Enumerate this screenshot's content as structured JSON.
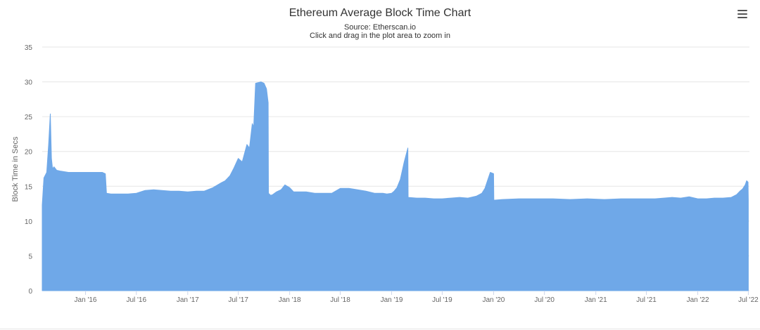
{
  "menu": {
    "icon": "hamburger-menu-icon"
  },
  "chart_data": {
    "type": "area",
    "title": "Ethereum Average Block Time Chart",
    "subtitle": "Source: Etherscan.io",
    "subtitle2": "Click and drag in the plot area to zoom in",
    "xlabel": "",
    "ylabel": "Block Time in Secs",
    "ylim": [
      0,
      35
    ],
    "yticks": [
      0,
      5,
      10,
      15,
      20,
      25,
      30,
      35
    ],
    "xlim": [
      "2015-07-30",
      "2022-07-05"
    ],
    "xticks": [
      {
        "date": "2016-01-01",
        "label": "Jan '16"
      },
      {
        "date": "2016-07-01",
        "label": "Jul '16"
      },
      {
        "date": "2017-01-01",
        "label": "Jan '17"
      },
      {
        "date": "2017-07-01",
        "label": "Jul '17"
      },
      {
        "date": "2018-01-01",
        "label": "Jan '18"
      },
      {
        "date": "2018-07-01",
        "label": "Jul '18"
      },
      {
        "date": "2019-01-01",
        "label": "Jan '19"
      },
      {
        "date": "2019-07-01",
        "label": "Jul '19"
      },
      {
        "date": "2020-01-01",
        "label": "Jan '20"
      },
      {
        "date": "2020-07-01",
        "label": "Jul '20"
      },
      {
        "date": "2021-01-01",
        "label": "Jan '21"
      },
      {
        "date": "2021-07-01",
        "label": "Jul '21"
      },
      {
        "date": "2022-01-01",
        "label": "Jan '22"
      },
      {
        "date": "2022-07-01",
        "label": "Jul '22"
      }
    ],
    "grid": true,
    "series": [
      {
        "color": "#6fa8e8",
        "x": [
          "2015-07-30",
          "2015-08-05",
          "2015-08-15",
          "2015-08-22",
          "2015-08-28",
          "2015-09-01",
          "2015-09-05",
          "2015-09-10",
          "2015-09-20",
          "2015-10-01",
          "2015-11-01",
          "2015-12-01",
          "2016-01-01",
          "2016-02-01",
          "2016-03-01",
          "2016-03-12",
          "2016-03-16",
          "2016-04-01",
          "2016-05-01",
          "2016-06-01",
          "2016-07-01",
          "2016-08-01",
          "2016-09-01",
          "2016-10-01",
          "2016-11-01",
          "2016-12-01",
          "2017-01-01",
          "2017-02-01",
          "2017-03-01",
          "2017-04-01",
          "2017-05-01",
          "2017-05-15",
          "2017-06-01",
          "2017-06-15",
          "2017-07-01",
          "2017-07-15",
          "2017-08-01",
          "2017-08-10",
          "2017-08-20",
          "2017-08-25",
          "2017-09-01",
          "2017-09-20",
          "2017-10-01",
          "2017-10-10",
          "2017-10-16",
          "2017-10-17",
          "2017-10-25",
          "2017-11-01",
          "2017-11-15",
          "2017-12-01",
          "2017-12-15",
          "2018-01-01",
          "2018-01-15",
          "2018-02-01",
          "2018-03-01",
          "2018-04-01",
          "2018-05-01",
          "2018-06-01",
          "2018-07-01",
          "2018-08-01",
          "2018-09-01",
          "2018-10-01",
          "2018-11-01",
          "2018-12-01",
          "2018-12-15",
          "2019-01-01",
          "2019-01-10",
          "2019-01-20",
          "2019-02-01",
          "2019-02-15",
          "2019-02-28",
          "2019-03-01",
          "2019-04-01",
          "2019-05-01",
          "2019-06-01",
          "2019-07-01",
          "2019-08-01",
          "2019-09-01",
          "2019-10-01",
          "2019-11-01",
          "2019-11-20",
          "2019-12-01",
          "2019-12-10",
          "2019-12-20",
          "2020-01-01",
          "2020-01-02",
          "2020-02-01",
          "2020-04-01",
          "2020-06-01",
          "2020-08-01",
          "2020-10-01",
          "2020-12-01",
          "2021-02-01",
          "2021-04-01",
          "2021-06-01",
          "2021-08-01",
          "2021-09-01",
          "2021-10-01",
          "2021-11-01",
          "2021-12-01",
          "2022-01-01",
          "2022-02-01",
          "2022-03-01",
          "2022-04-01",
          "2022-05-01",
          "2022-05-20",
          "2022-06-01",
          "2022-06-10",
          "2022-06-20",
          "2022-06-25",
          "2022-06-30",
          "2022-07-01"
        ],
        "y": [
          12.3,
          16.2,
          17.0,
          21.0,
          25.4,
          19.0,
          17.5,
          17.8,
          17.3,
          17.2,
          17.0,
          17.0,
          17.0,
          17.0,
          17.0,
          16.8,
          14.0,
          13.9,
          13.9,
          13.9,
          14.0,
          14.4,
          14.5,
          14.4,
          14.3,
          14.3,
          14.2,
          14.3,
          14.3,
          14.8,
          15.5,
          15.8,
          16.5,
          17.6,
          19.0,
          18.5,
          21.0,
          20.5,
          24.0,
          23.5,
          29.8,
          30.0,
          29.8,
          29.0,
          27.0,
          14.0,
          13.7,
          13.8,
          14.2,
          14.5,
          15.2,
          14.8,
          14.2,
          14.2,
          14.2,
          14.0,
          14.0,
          14.0,
          14.7,
          14.7,
          14.5,
          14.3,
          14.0,
          14.0,
          13.9,
          14.0,
          14.3,
          14.8,
          16.0,
          18.5,
          20.5,
          13.4,
          13.3,
          13.3,
          13.2,
          13.2,
          13.3,
          13.4,
          13.3,
          13.6,
          14.0,
          14.7,
          15.8,
          17.0,
          16.8,
          13.0,
          13.1,
          13.2,
          13.2,
          13.2,
          13.1,
          13.2,
          13.1,
          13.2,
          13.2,
          13.2,
          13.3,
          13.4,
          13.3,
          13.5,
          13.2,
          13.2,
          13.3,
          13.3,
          13.4,
          13.8,
          14.3,
          14.6,
          15.2,
          15.8,
          15.6,
          13.0
        ]
      }
    ]
  }
}
